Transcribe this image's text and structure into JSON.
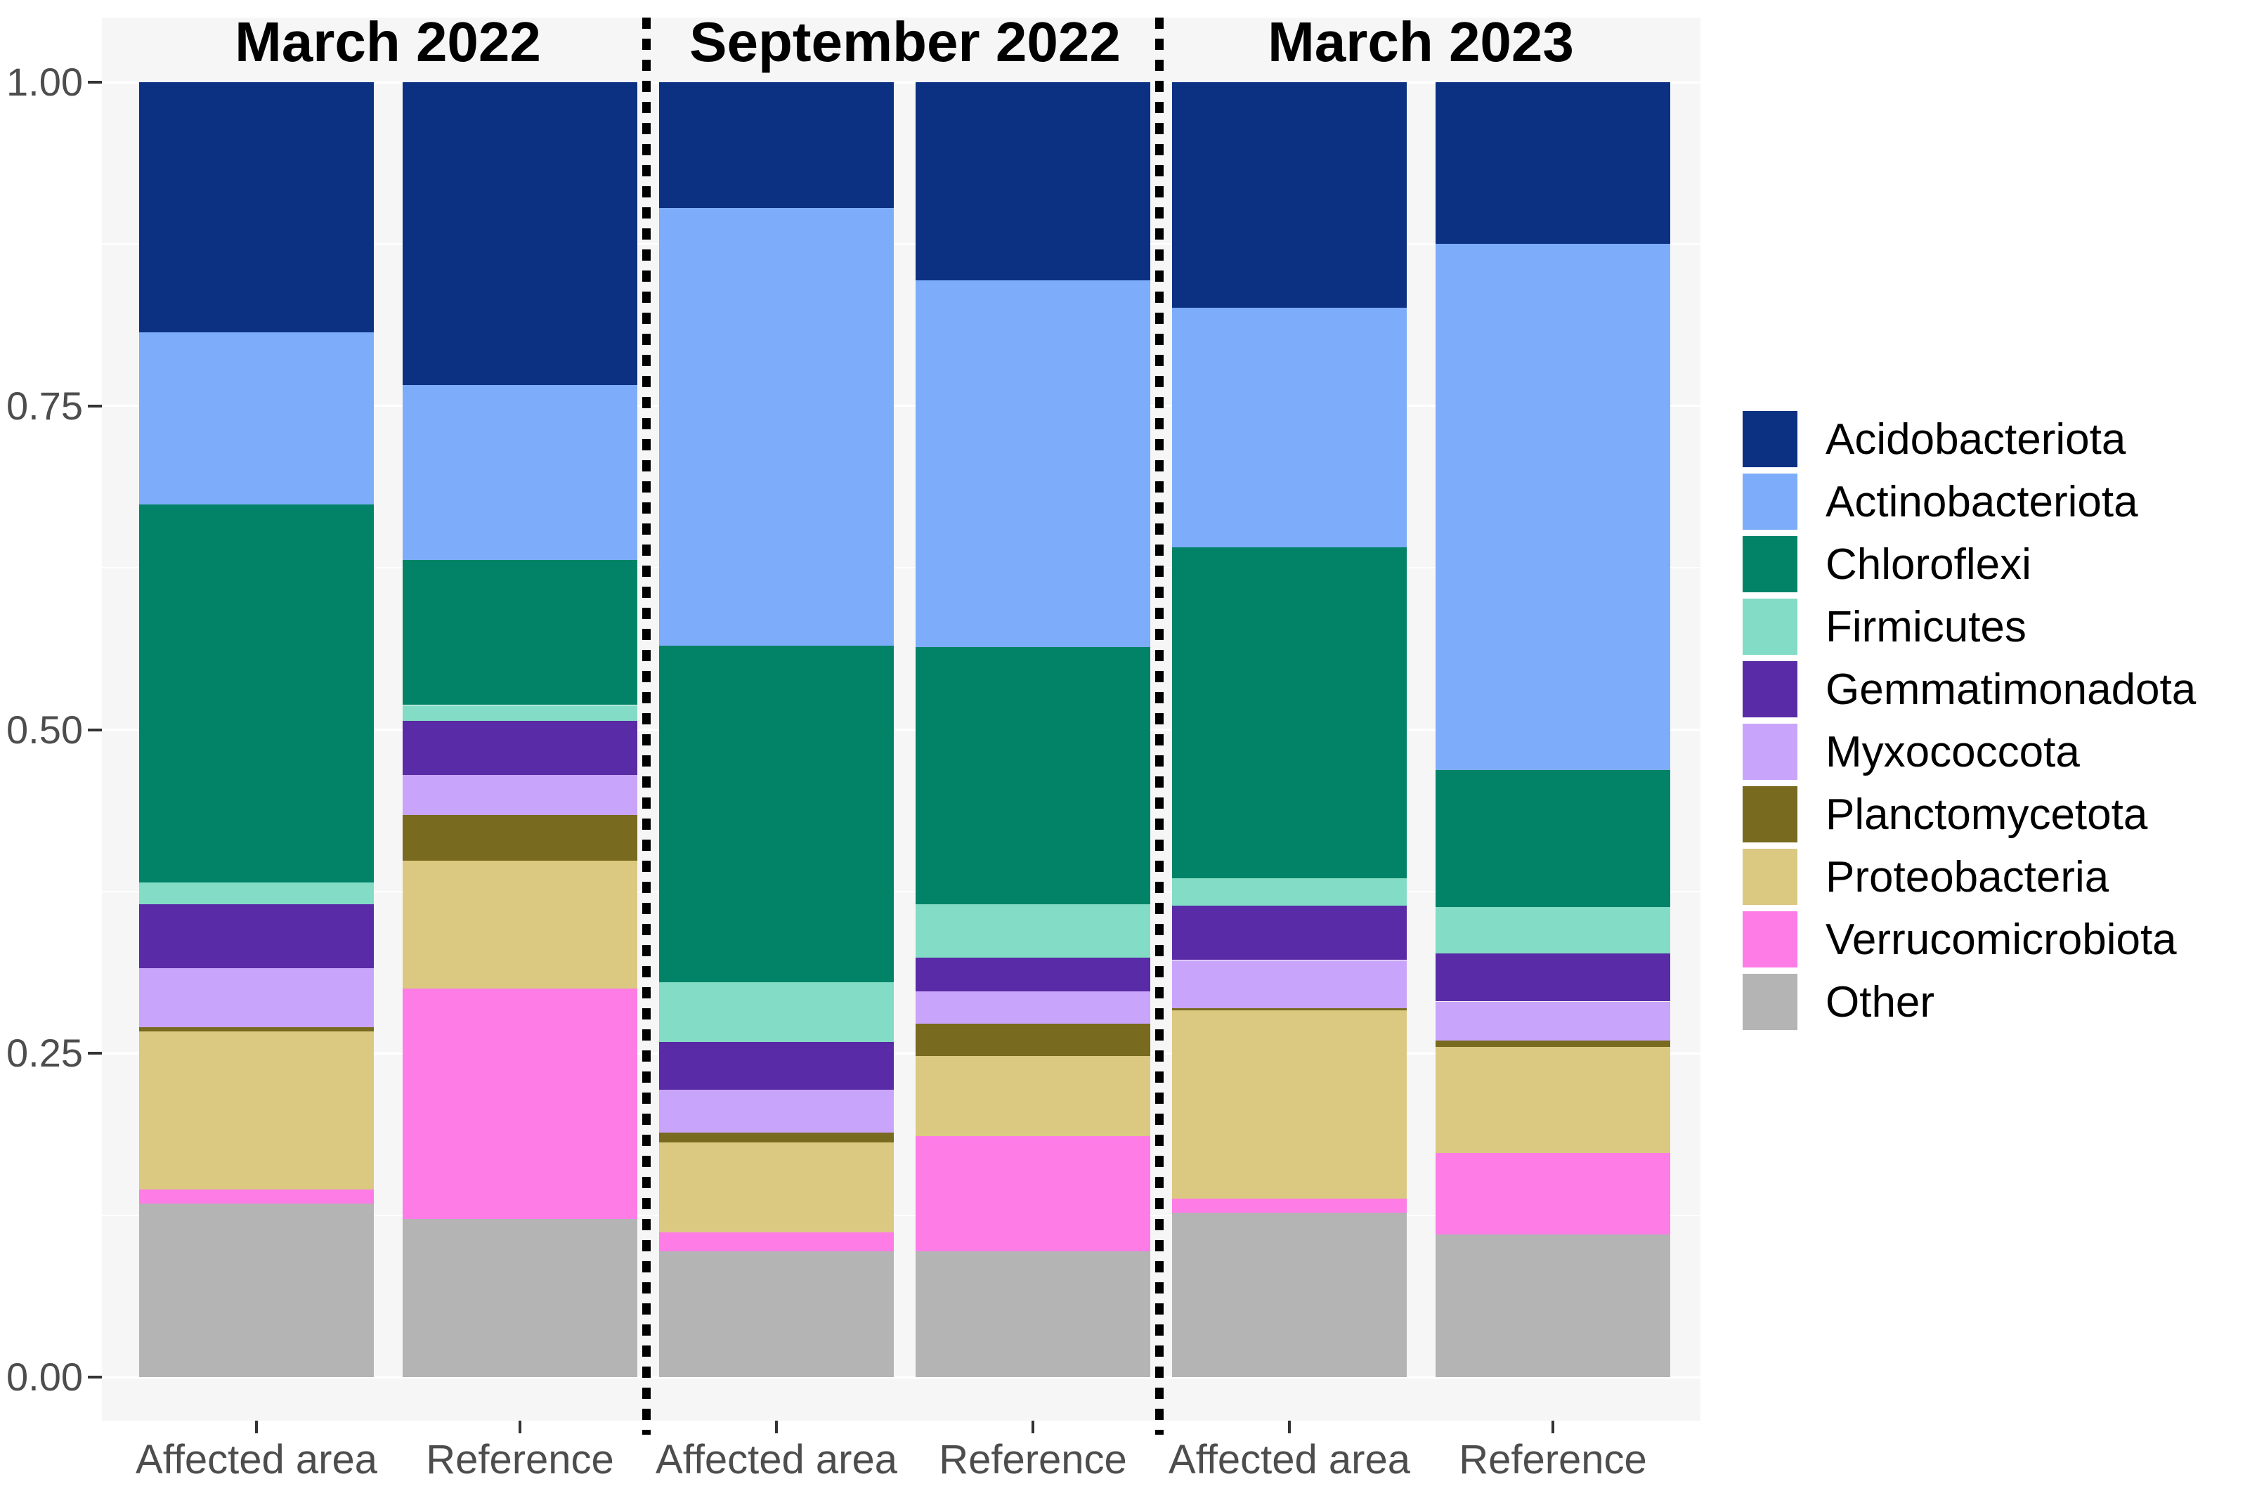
{
  "chart_data": {
    "type": "bar",
    "stacked": true,
    "normalized": true,
    "title": "",
    "xlabel": "",
    "ylabel": "",
    "panel_titles": [
      "March 2022",
      "September 2022",
      "March 2023"
    ],
    "categories": [
      "Affected area",
      "Reference",
      "Affected area",
      "Reference",
      "Affected area",
      "Reference"
    ],
    "category_panel_index": [
      0,
      0,
      1,
      1,
      2,
      2
    ],
    "y_axis": {
      "ylim": [
        0,
        1
      ],
      "ticks": [
        {
          "label": "1.00",
          "value": 1.0
        },
        {
          "label": "0.75",
          "value": 0.75
        },
        {
          "label": "0.50",
          "value": 0.5
        },
        {
          "label": "0.25",
          "value": 0.25
        },
        {
          "label": "0.00",
          "value": 0.0
        }
      ],
      "minor_gridlines": [
        0.125,
        0.375,
        0.625,
        0.875
      ],
      "major_gridlines": [
        0.0,
        0.25,
        0.5,
        0.75,
        1.0
      ]
    },
    "series": [
      {
        "name": "Acidobacteriota",
        "color": "#0c3183",
        "values": [
          0.193,
          0.234,
          0.097,
          0.153,
          0.174,
          0.125
        ]
      },
      {
        "name": "Actinobacteriota",
        "color": "#7dadfa",
        "values": [
          0.133,
          0.135,
          0.338,
          0.283,
          0.185,
          0.406
        ]
      },
      {
        "name": "Chloroflexi",
        "color": "#028367",
        "values": [
          0.292,
          0.112,
          0.26,
          0.199,
          0.256,
          0.106
        ]
      },
      {
        "name": "Firmicutes",
        "color": "#83dcc5",
        "values": [
          0.017,
          0.012,
          0.046,
          0.041,
          0.021,
          0.036
        ]
      },
      {
        "name": "Gemmatimonadota",
        "color": "#5a2ba6",
        "values": [
          0.049,
          0.042,
          0.037,
          0.026,
          0.042,
          0.037
        ]
      },
      {
        "name": "Myxococcota",
        "color": "#c8a5fa",
        "values": [
          0.046,
          0.031,
          0.033,
          0.025,
          0.037,
          0.03
        ]
      },
      {
        "name": "Planctomycetota",
        "color": "#786a1e",
        "values": [
          0.003,
          0.035,
          0.008,
          0.025,
          0.002,
          0.005
        ]
      },
      {
        "name": "Proteobacteria",
        "color": "#dbc982",
        "values": [
          0.122,
          0.099,
          0.069,
          0.062,
          0.145,
          0.082
        ]
      },
      {
        "name": "Verrucomicrobiota",
        "color": "#fd7ce6",
        "values": [
          0.011,
          0.178,
          0.015,
          0.089,
          0.011,
          0.063
        ]
      },
      {
        "name": "Other",
        "color": "#b4b4b4",
        "values": [
          0.134,
          0.122,
          0.097,
          0.097,
          0.127,
          0.11
        ]
      }
    ],
    "stack_order_bottom_to_top": [
      "Other",
      "Verrucomicrobiota",
      "Proteobacteria",
      "Planctomycetota",
      "Myxococcota",
      "Gemmatimonadota",
      "Firmicutes",
      "Chloroflexi",
      "Actinobacteriota",
      "Acidobacteriota"
    ],
    "legend_position": "right",
    "panel_separator_style": "black dashed vertical line",
    "panel_background": "#f6f6f6",
    "gridline_color": "#ffffff",
    "axis_text_color": "#4d4d4d",
    "title_text_color": "#000000"
  },
  "legend": {
    "items": [
      {
        "label": "Acidobacteriota",
        "color": "#0c3183"
      },
      {
        "label": "Actinobacteriota",
        "color": "#7dadfa"
      },
      {
        "label": "Chloroflexi",
        "color": "#028367"
      },
      {
        "label": "Firmicutes",
        "color": "#83dcc5"
      },
      {
        "label": "Gemmatimonadota",
        "color": "#5a2ba6"
      },
      {
        "label": "Myxococcota",
        "color": "#c8a5fa"
      },
      {
        "label": "Planctomycetota",
        "color": "#786a1e"
      },
      {
        "label": "Proteobacteria",
        "color": "#dbc982"
      },
      {
        "label": "Verrucomicrobiota",
        "color": "#fd7ce6"
      },
      {
        "label": "Other",
        "color": "#b4b4b4"
      }
    ]
  }
}
